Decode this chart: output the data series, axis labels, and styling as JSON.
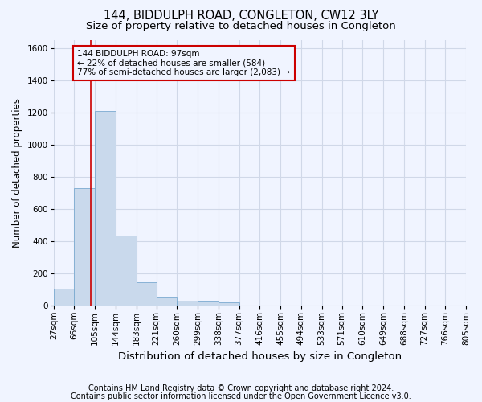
{
  "title": "144, BIDDULPH ROAD, CONGLETON, CW12 3LY",
  "subtitle": "Size of property relative to detached houses in Congleton",
  "xlabel": "Distribution of detached houses by size in Congleton",
  "ylabel": "Number of detached properties",
  "footnote1": "Contains HM Land Registry data © Crown copyright and database right 2024.",
  "footnote2": "Contains public sector information licensed under the Open Government Licence v3.0.",
  "bar_color": "#c9d9ec",
  "bar_edge_color": "#7aaad0",
  "grid_color": "#d0d8e8",
  "annotation_line_color": "#cc0000",
  "annotation_box_color": "#cc0000",
  "annotation_text_line1": "144 BIDDULPH ROAD: 97sqm",
  "annotation_text_line2": "← 22% of detached houses are smaller (584)",
  "annotation_text_line3": "77% of semi-detached houses are larger (2,083) →",
  "property_sqm": 97,
  "bin_edges": [
    27,
    66,
    105,
    144,
    183,
    221,
    260,
    299,
    338,
    377,
    416,
    455,
    494,
    533,
    571,
    610,
    649,
    688,
    727,
    766,
    805
  ],
  "bin_labels": [
    "27sqm",
    "66sqm",
    "105sqm",
    "144sqm",
    "183sqm",
    "221sqm",
    "260sqm",
    "299sqm",
    "338sqm",
    "377sqm",
    "416sqm",
    "455sqm",
    "494sqm",
    "533sqm",
    "571sqm",
    "610sqm",
    "649sqm",
    "688sqm",
    "727sqm",
    "766sqm",
    "805sqm"
  ],
  "bar_heights": [
    105,
    730,
    1210,
    435,
    145,
    50,
    30,
    25,
    18,
    0,
    0,
    0,
    0,
    0,
    0,
    0,
    0,
    0,
    0,
    0
  ],
  "ylim": [
    0,
    1650
  ],
  "yticks": [
    0,
    200,
    400,
    600,
    800,
    1000,
    1200,
    1400,
    1600
  ],
  "background_color": "#f0f4ff",
  "title_fontsize": 10.5,
  "subtitle_fontsize": 9.5,
  "xlabel_fontsize": 9.5,
  "ylabel_fontsize": 8.5,
  "tick_fontsize": 7.5,
  "annotation_fontsize": 7.5,
  "footnote_fontsize": 7.0
}
